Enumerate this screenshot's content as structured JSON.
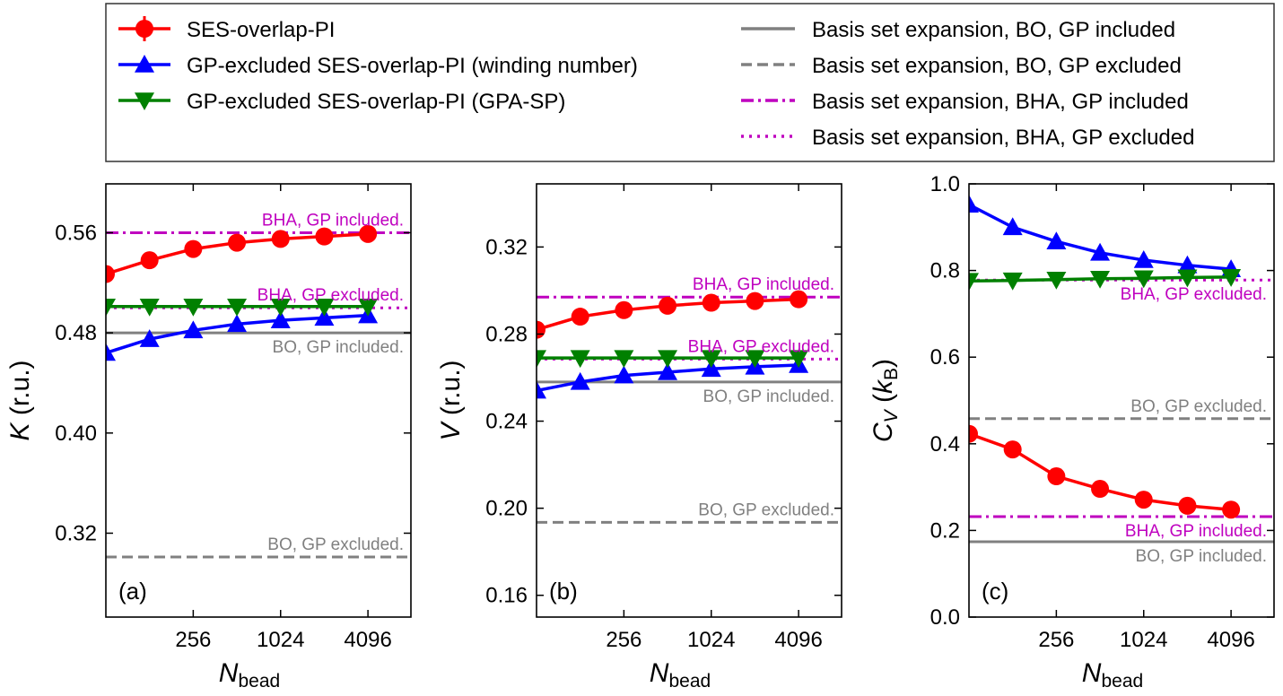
{
  "chart_data": [
    {
      "type": "line",
      "panel_label": "(a)",
      "ylabel_symbol": "K",
      "ylabel_unit": "(r.u.)",
      "xlabel_symbol": "N",
      "xlabel_sub": "bead",
      "x_scale": "log2",
      "xlim": [
        64,
        8100
      ],
      "ylim": [
        0.253,
        0.599
      ],
      "xticks": [
        256,
        1024,
        4096
      ],
      "xtick_labels": [
        "256",
        "1024",
        "4096"
      ],
      "yticks": [
        0.32,
        0.4,
        0.48,
        0.56
      ],
      "ytick_labels": [
        "0.32",
        "0.40",
        "0.48",
        "0.56"
      ],
      "grid": false,
      "x": [
        64,
        128,
        256,
        512,
        1024,
        2048,
        4096
      ],
      "series": [
        {
          "name": "SES-overlap-PI",
          "color": "#ff0000",
          "marker": "circle",
          "values": [
            0.527,
            0.538,
            0.547,
            0.552,
            0.555,
            0.557,
            0.559
          ]
        },
        {
          "name": "GP-excluded SES-overlap-PI (winding number)",
          "color": "#0000ff",
          "marker": "triangle-up",
          "values": [
            0.464,
            0.475,
            0.482,
            0.487,
            0.49,
            0.492,
            0.494
          ]
        },
        {
          "name": "GP-excluded SES-overlap-PI (GPA-SP)",
          "color": "#008000",
          "marker": "triangle-down",
          "values": [
            0.501,
            0.501,
            0.501,
            0.501,
            0.501,
            0.501,
            0.501
          ]
        }
      ],
      "reference_lines": [
        {
          "ref": 2,
          "value": 0.56,
          "label": "BHA, GP included.",
          "label_side": "above"
        },
        {
          "ref": 3,
          "value": 0.5,
          "label": "BHA, GP excluded.",
          "label_side": "above"
        },
        {
          "ref": 0,
          "value": 0.48,
          "label": "BO, GP included.",
          "label_side": "below"
        },
        {
          "ref": 1,
          "value": 0.301,
          "label": "BO, GP excluded.",
          "label_side": "above"
        }
      ]
    },
    {
      "type": "line",
      "panel_label": "(b)",
      "ylabel_symbol": "V",
      "ylabel_unit": "(r.u.)",
      "xlabel_symbol": "N",
      "xlabel_sub": "bead",
      "x_scale": "log2",
      "xlim": [
        64,
        8100
      ],
      "ylim": [
        0.15,
        0.349
      ],
      "xticks": [
        256,
        1024,
        4096
      ],
      "xtick_labels": [
        "256",
        "1024",
        "4096"
      ],
      "yticks": [
        0.16,
        0.2,
        0.24,
        0.28,
        0.32
      ],
      "ytick_labels": [
        "0.16",
        "0.20",
        "0.24",
        "0.28",
        "0.32"
      ],
      "grid": false,
      "x": [
        64,
        128,
        256,
        512,
        1024,
        2048,
        4096
      ],
      "series": [
        {
          "name": "SES-overlap-PI",
          "color": "#ff0000",
          "marker": "circle",
          "values": [
            0.282,
            0.288,
            0.291,
            0.293,
            0.2944,
            0.2952,
            0.296
          ]
        },
        {
          "name": "GP-excluded SES-overlap-PI (winding number)",
          "color": "#0000ff",
          "marker": "triangle-up",
          "values": [
            0.254,
            0.258,
            0.261,
            0.2625,
            0.264,
            0.265,
            0.2658
          ]
        },
        {
          "name": "GP-excluded SES-overlap-PI (GPA-SP)",
          "color": "#008000",
          "marker": "triangle-down",
          "values": [
            0.269,
            0.269,
            0.269,
            0.269,
            0.269,
            0.269,
            0.269
          ]
        }
      ],
      "reference_lines": [
        {
          "ref": 2,
          "value": 0.297,
          "label": "BHA, GP included.",
          "label_side": "above"
        },
        {
          "ref": 3,
          "value": 0.2685,
          "label": "BHA, GP excluded.",
          "label_side": "above"
        },
        {
          "ref": 0,
          "value": 0.258,
          "label": "BO, GP included.",
          "label_side": "below"
        },
        {
          "ref": 1,
          "value": 0.1935,
          "label": "BO, GP excluded.",
          "label_side": "above"
        }
      ]
    },
    {
      "type": "line",
      "panel_label": "(c)",
      "ylabel_symbol": "C",
      "ylabel_symbol_sub": "V",
      "ylabel_unit_symbol": "k",
      "ylabel_unit_sub": "B",
      "xlabel_symbol": "N",
      "xlabel_sub": "bead",
      "x_scale": "log2",
      "xlim": [
        64,
        8100
      ],
      "ylim": [
        0.0,
        1.0
      ],
      "xticks": [
        256,
        1024,
        4096
      ],
      "xtick_labels": [
        "256",
        "1024",
        "4096"
      ],
      "yticks": [
        0.0,
        0.2,
        0.4,
        0.6,
        0.8,
        1.0
      ],
      "ytick_labels": [
        "0.0",
        "0.2",
        "0.4",
        "0.6",
        "0.8",
        "1.0"
      ],
      "grid": false,
      "x": [
        64,
        128,
        256,
        512,
        1024,
        2048,
        4096
      ],
      "series": [
        {
          "name": "SES-overlap-PI",
          "color": "#ff0000",
          "marker": "circle",
          "values": [
            0.423,
            0.387,
            0.325,
            0.296,
            0.271,
            0.257,
            0.248
          ]
        },
        {
          "name": "GP-excluded SES-overlap-PI (winding number)",
          "color": "#0000ff",
          "marker": "triangle-up",
          "values": [
            0.952,
            0.9,
            0.867,
            0.841,
            0.824,
            0.812,
            0.803
          ]
        },
        {
          "name": "GP-excluded SES-overlap-PI (GPA-SP)",
          "color": "#008000",
          "marker": "triangle-down",
          "values": [
            0.776,
            0.777,
            0.779,
            0.781,
            0.782,
            0.784,
            0.785
          ]
        }
      ],
      "reference_lines": [
        {
          "ref": 3,
          "value": 0.778,
          "label": "BHA, GP excluded.",
          "label_side": "below"
        },
        {
          "ref": 1,
          "value": 0.458,
          "label": "BO, GP excluded.",
          "label_side": "above"
        },
        {
          "ref": 2,
          "value": 0.232,
          "label": "BHA, GP included.",
          "label_side": "below"
        },
        {
          "ref": 0,
          "value": 0.174,
          "label": "BO, GP included.",
          "label_side": "below"
        }
      ]
    }
  ],
  "legend": {
    "placement": "top",
    "reference_entries": [
      {
        "label": "Basis set expansion, BO, GP included",
        "color": "#808080",
        "dash": "solid"
      },
      {
        "label": "Basis set expansion, BO, GP excluded",
        "color": "#808080",
        "dash": "dashed"
      },
      {
        "label": "Basis set expansion, BHA, GP included",
        "color": "#bf00bf",
        "dash": "dashdot"
      },
      {
        "label": "Basis set expansion, BHA, GP excluded",
        "color": "#bf00bf",
        "dash": "dotted"
      }
    ]
  }
}
